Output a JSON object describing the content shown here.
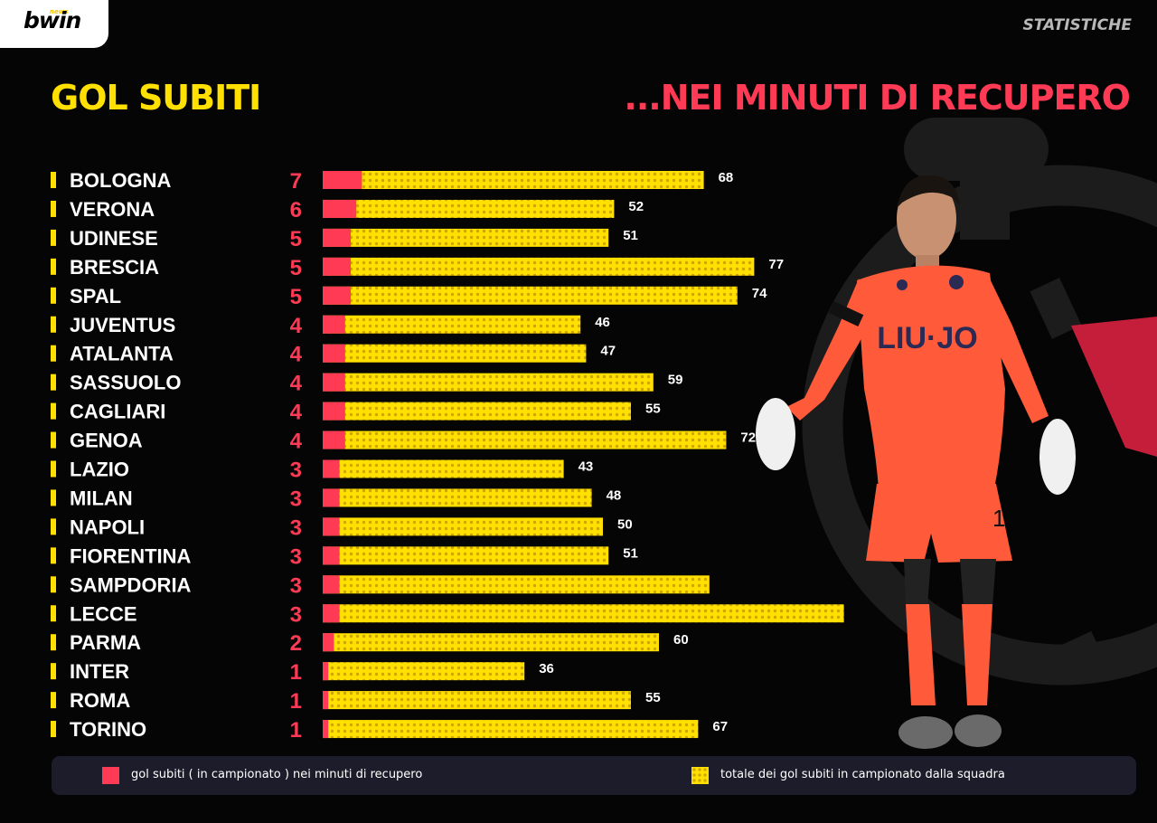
{
  "header": {
    "brand": "bwin",
    "brand_tag": "news",
    "section": "STATISTICHE"
  },
  "titles": {
    "left": "GOL SUBITI",
    "right": "...NEI MINUTI DI RECUPERO"
  },
  "colors": {
    "accent_yellow": "#ffe000",
    "accent_red": "#ff3a55",
    "background": "#050505",
    "legend_bg": "#1c1c2a"
  },
  "legend": {
    "stoppage": "gol subiti ( in campionato ) nei minuti di recupero",
    "total": "totale dei gol subiti in campionato dalla squadra"
  },
  "chart_data": {
    "type": "bar",
    "orientation": "horizontal",
    "categories": [
      "BOLOGNA",
      "VERONA",
      "UDINESE",
      "BRESCIA",
      "SPAL",
      "JUVENTUS",
      "ATALANTA",
      "SASSUOLO",
      "CAGLIARI",
      "GENOA",
      "LAZIO",
      "MILAN",
      "NAPOLI",
      "FIORENTINA",
      "SAMPDORIA",
      "LECCE",
      "PARMA",
      "INTER",
      "ROMA",
      "TORINO"
    ],
    "series": [
      {
        "name": "gol subiti ( in campionato ) nei minuti di recupero",
        "values": [
          7,
          6,
          5,
          5,
          5,
          4,
          4,
          4,
          4,
          4,
          3,
          3,
          3,
          3,
          3,
          3,
          2,
          1,
          1,
          1
        ]
      },
      {
        "name": "totale dei gol subiti in campionato dalla squadra",
        "values": [
          68,
          52,
          51,
          77,
          74,
          46,
          47,
          59,
          55,
          72,
          43,
          48,
          50,
          51,
          null,
          null,
          60,
          36,
          55,
          67
        ]
      }
    ],
    "xlim": [
      0,
      80
    ],
    "grid": false,
    "legend_position": "bottom"
  }
}
